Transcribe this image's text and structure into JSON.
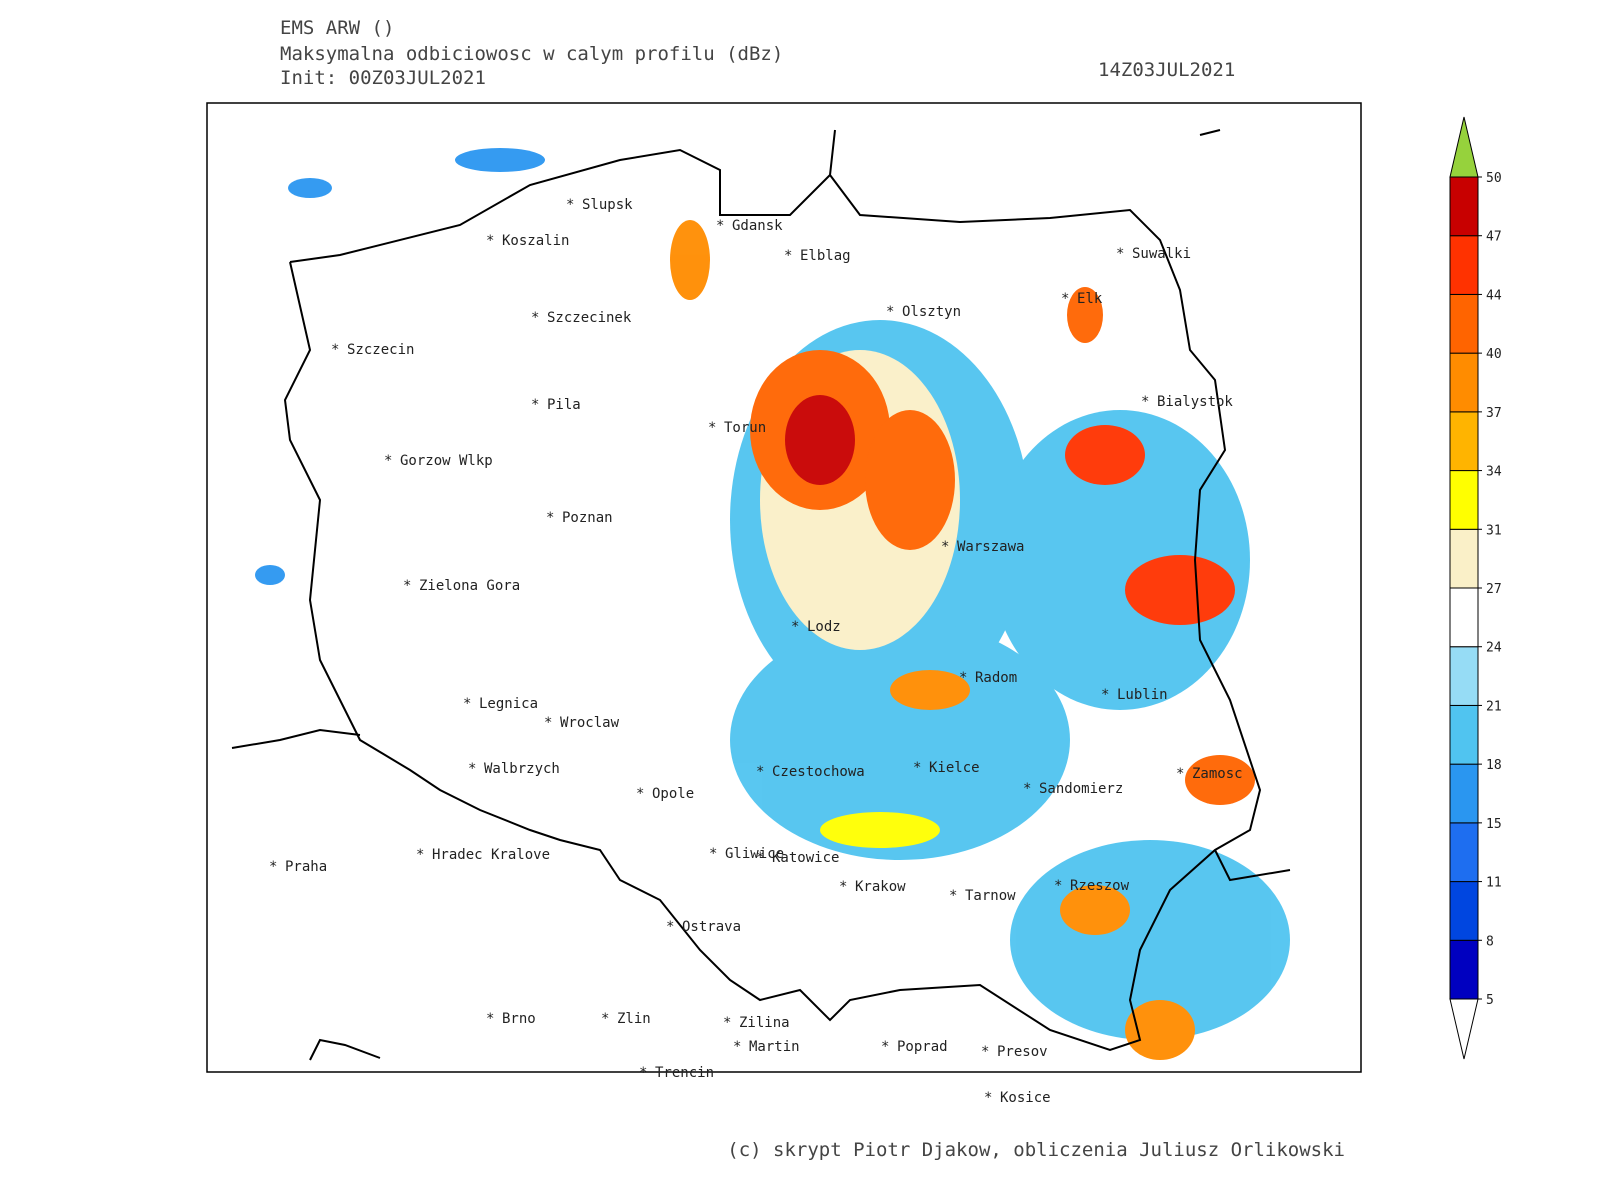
{
  "header": {
    "lines": [
      "EMS ARW ()",
      "Maksymalna odbiciowosc w calym profilu (dBz)",
      "Init: 00Z03JUL2021"
    ],
    "valid_time": "14Z03JUL2021"
  },
  "cities": [
    "Slupsk",
    "Gdansk",
    "Koszalin",
    "Elblag",
    "Suwalki",
    "Elk",
    "Olsztyn",
    "Szczecinek",
    "Szczecin",
    "Bialystok",
    "Pila",
    "Torun",
    "Gorzow Wlkp",
    "Poznan",
    "Warszawa",
    "Zielona Gora",
    "Lodz",
    "Radom",
    "Lublin",
    "Legnica",
    "Wroclaw",
    "Walbrzych",
    "Czestochowa",
    "Kielce",
    "Zamosc",
    "Opole",
    "Sandomierz",
    "Gliwice",
    "Katowice",
    "Hradec Kralove",
    "Praha",
    "Krakow",
    "Tarnow",
    "Rzeszow",
    "Ostrava",
    "Brno",
    "Zlin",
    "Zilina",
    "Martin",
    "Poprad",
    "Presov",
    "Trencin",
    "Kosice"
  ],
  "colorbar": {
    "levels": [
      5,
      8,
      11,
      15,
      18,
      21,
      24,
      27,
      31,
      34,
      37,
      40,
      44,
      47,
      50
    ],
    "colors": [
      "#0000c0",
      "#0046e0",
      "#1e6ef0",
      "#2a96f0",
      "#50c4f0",
      "#96dcf5",
      "#ffffff",
      "#faf0c8",
      "#ffff00",
      "#ffb400",
      "#ff8c00",
      "#ff6400",
      "#ff3200",
      "#c80000"
    ],
    "over_color": "#96d23c",
    "under_color": "#ffffff"
  },
  "credit": "(c) skrypt Piotr Djakow, obliczenia Juliusz Orlikowski"
}
